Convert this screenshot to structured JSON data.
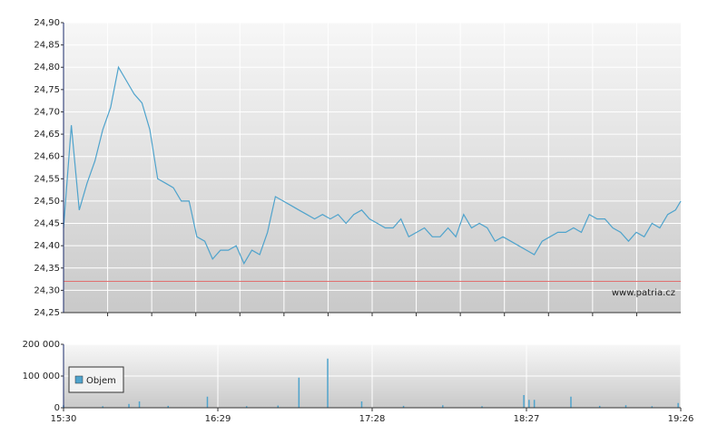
{
  "chart_data": [
    {
      "type": "line",
      "x": [
        "15:30",
        "15:33",
        "15:36",
        "15:39",
        "15:42",
        "15:45",
        "15:48",
        "15:51",
        "15:54",
        "15:57",
        "16:00",
        "16:03",
        "16:06",
        "16:09",
        "16:12",
        "16:15",
        "16:18",
        "16:21",
        "16:24",
        "16:27",
        "16:30",
        "16:33",
        "16:36",
        "16:39",
        "16:42",
        "16:45",
        "16:48",
        "16:51",
        "16:54",
        "16:57",
        "17:00",
        "17:03",
        "17:06",
        "17:09",
        "17:12",
        "17:15",
        "17:18",
        "17:21",
        "17:24",
        "17:27",
        "17:30",
        "17:33",
        "17:36",
        "17:39",
        "17:42",
        "17:45",
        "17:48",
        "17:51",
        "17:54",
        "17:57",
        "18:00",
        "18:03",
        "18:06",
        "18:09",
        "18:12",
        "18:15",
        "18:18",
        "18:21",
        "18:24",
        "18:27",
        "18:30",
        "18:33",
        "18:36",
        "18:39",
        "18:42",
        "18:45",
        "18:48",
        "18:51",
        "18:54",
        "18:57",
        "19:00",
        "19:03",
        "19:06",
        "19:09",
        "19:12",
        "19:15",
        "19:18",
        "19:21",
        "19:24",
        "19:26"
      ],
      "values": [
        24.44,
        24.67,
        24.48,
        24.54,
        24.59,
        24.66,
        24.71,
        24.8,
        24.77,
        24.74,
        24.72,
        24.66,
        24.55,
        24.54,
        24.53,
        24.5,
        24.5,
        24.42,
        24.41,
        24.37,
        24.39,
        24.39,
        24.4,
        24.36,
        24.39,
        24.38,
        24.43,
        24.51,
        24.5,
        24.49,
        24.48,
        24.47,
        24.46,
        24.47,
        24.46,
        24.47,
        24.45,
        24.47,
        24.48,
        24.46,
        24.45,
        24.44,
        24.44,
        24.46,
        24.42,
        24.43,
        24.44,
        24.42,
        24.42,
        24.44,
        24.42,
        24.47,
        24.44,
        24.45,
        24.44,
        24.41,
        24.42,
        24.41,
        24.4,
        24.39,
        24.38,
        24.41,
        24.42,
        24.43,
        24.43,
        24.44,
        24.43,
        24.47,
        24.46,
        24.46,
        24.44,
        24.43,
        24.41,
        24.43,
        24.42,
        24.45,
        24.44,
        24.47,
        24.48,
        24.5
      ],
      "color": "#4fa3cc",
      "xlim": [
        "15:30",
        "19:26"
      ],
      "ylim": [
        24.25,
        24.9
      ],
      "yticks": [
        {
          "value": 24.25,
          "label": "24,25"
        },
        {
          "value": 24.3,
          "label": "24,30"
        },
        {
          "value": 24.35,
          "label": "24,35"
        },
        {
          "value": 24.4,
          "label": "24,40"
        },
        {
          "value": 24.45,
          "label": "24,45"
        },
        {
          "value": 24.5,
          "label": "24,50"
        },
        {
          "value": 24.55,
          "label": "24,55"
        },
        {
          "value": 24.6,
          "label": "24,60"
        },
        {
          "value": 24.65,
          "label": "24,65"
        },
        {
          "value": 24.7,
          "label": "24,70"
        },
        {
          "value": 24.75,
          "label": "24,75"
        },
        {
          "value": 24.8,
          "label": "24,80"
        },
        {
          "value": 24.85,
          "label": "24,85"
        },
        {
          "value": 24.9,
          "label": "24,90"
        }
      ],
      "reference_line": {
        "value": 24.32,
        "color": "#e07070"
      },
      "annotation": "www.patria.cz",
      "grid": true
    },
    {
      "type": "bar",
      "x": [
        "15:30",
        "15:45",
        "15:55",
        "15:59",
        "16:10",
        "16:25",
        "16:40",
        "16:52",
        "17:00",
        "17:11",
        "17:24",
        "17:40",
        "17:55",
        "18:10",
        "18:26",
        "18:28",
        "18:30",
        "18:44",
        "18:55",
        "19:05",
        "19:15",
        "19:25"
      ],
      "series": [
        {
          "name": "Objem",
          "color": "#4fa3cc",
          "values": [
            8000,
            5000,
            12000,
            20000,
            6000,
            35000,
            5000,
            7000,
            95000,
            155000,
            20000,
            6000,
            8000,
            5000,
            40000,
            25000,
            25000,
            35000,
            6000,
            8000,
            5000,
            15000
          ]
        }
      ],
      "xlim": [
        "15:30",
        "19:26"
      ],
      "xticks": [
        "15:30",
        "16:29",
        "17:28",
        "18:27",
        "19:26"
      ],
      "ylim": [
        0,
        200000
      ],
      "yticks": [
        0,
        {
          "value": 100000,
          "label": "100 000"
        },
        {
          "value": 200000,
          "label": "200 000"
        }
      ],
      "legend": "left",
      "grid": true
    }
  ]
}
